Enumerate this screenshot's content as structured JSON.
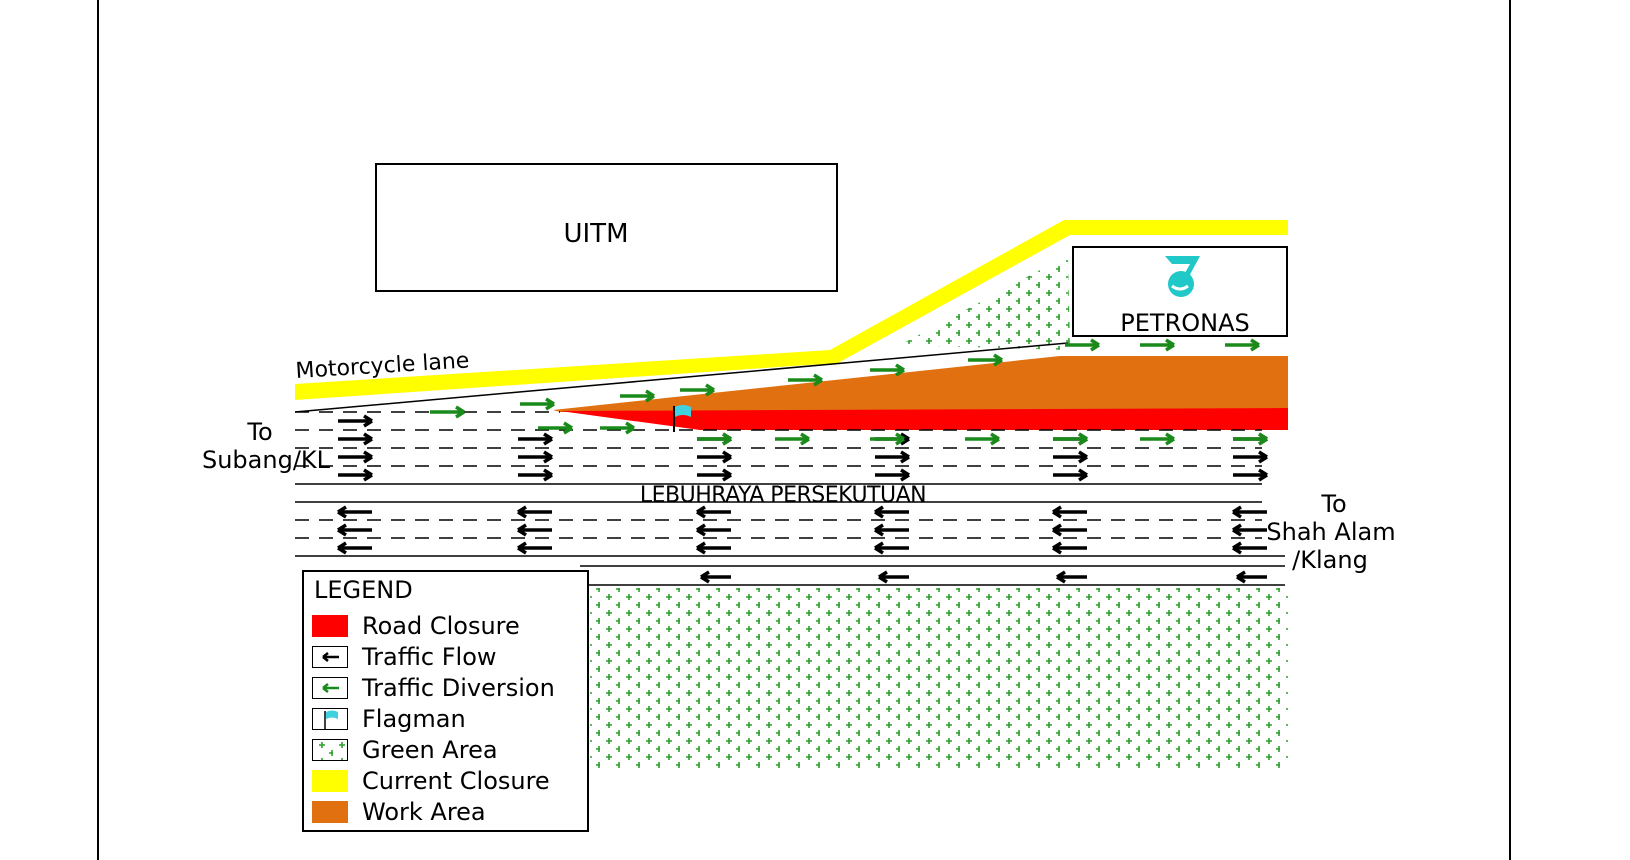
{
  "labels": {
    "uitm": "UITM",
    "petronas": "PETRONAS",
    "motorcycle_lane": "Motorcycle lane",
    "to_left": [
      "To",
      "Subang/KL"
    ],
    "road_name": "LEBUHRAYA PERSEKUTUAN",
    "to_right": [
      "To",
      "Shah Alam",
      "/Klang"
    ]
  },
  "legend": {
    "title": "LEGEND",
    "items": [
      {
        "label": "Road Closure",
        "icon": "red-swatch",
        "color": "#ff0000"
      },
      {
        "label": "Traffic Flow",
        "icon": "black-arrow-swatch"
      },
      {
        "label": "Traffic Diversion",
        "icon": "green-arrow-swatch"
      },
      {
        "label": "Flagman",
        "icon": "flag-swatch"
      },
      {
        "label": "Green Area",
        "icon": "green-dots-swatch"
      },
      {
        "label": "Current Closure",
        "icon": "yellow-swatch",
        "color": "#ffff00"
      },
      {
        "label": "Work Area",
        "icon": "orange-swatch",
        "color": "#e07010"
      }
    ]
  },
  "colors": {
    "road_closure": "#ff0000",
    "work_area": "#e07010",
    "current_closure": "#ffff00",
    "green": "#1a8a1a",
    "petronas_teal": "#20c8c8",
    "flag": "#40d0e0"
  }
}
